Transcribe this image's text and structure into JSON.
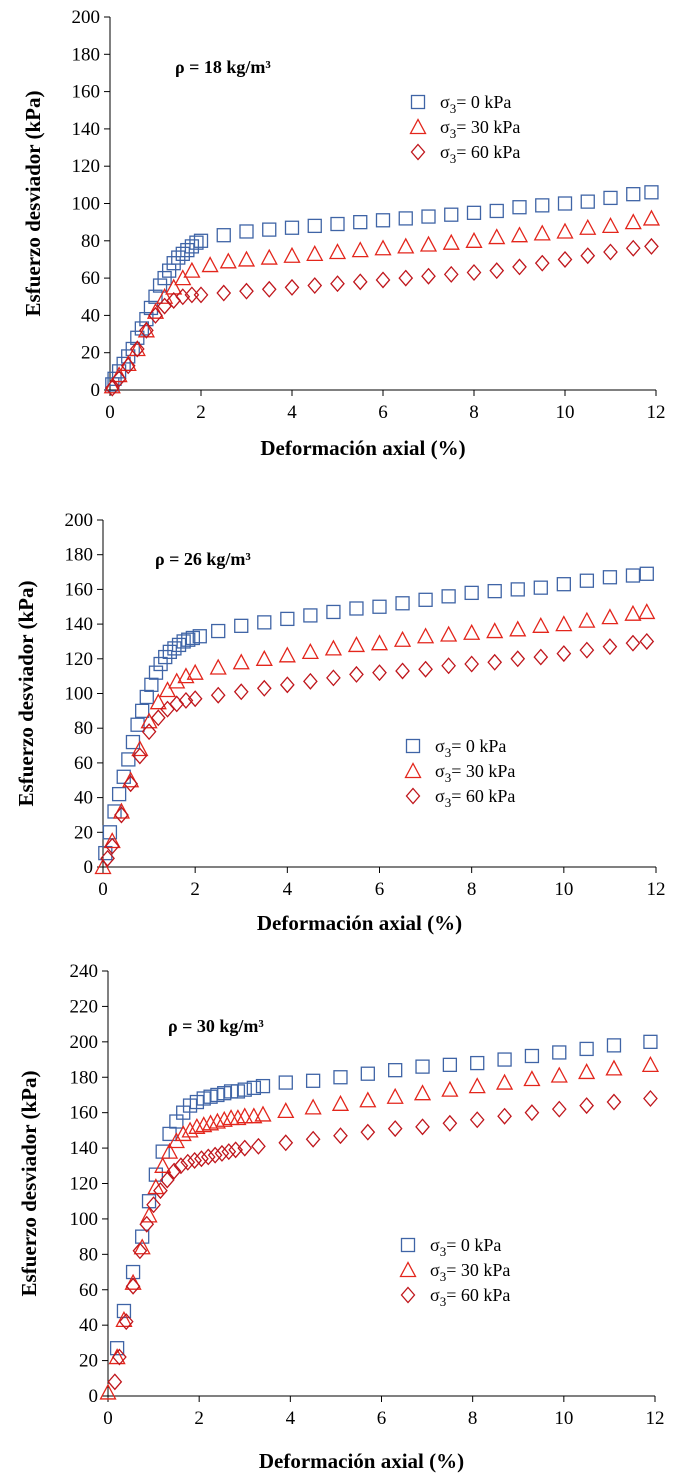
{
  "chart_data": [
    {
      "type": "scatter",
      "annotation": "ρ = 18 kg/m³",
      "xlabel": "Deformación axial (%)",
      "ylabel": "Esfuerzo desviador (kPa)",
      "xlim": [
        0,
        12
      ],
      "ylim": [
        0,
        200
      ],
      "xticks": [
        0,
        2,
        4,
        6,
        8,
        10,
        12
      ],
      "yticks": [
        0,
        20,
        40,
        60,
        80,
        100,
        120,
        140,
        160,
        180,
        200
      ],
      "grid": false,
      "legend": "right",
      "series": [
        {
          "name": "σ₃= 0  kPa",
          "marker": "square",
          "color": "#3f64a6",
          "x": [
            0.05,
            0.1,
            0.2,
            0.3,
            0.4,
            0.5,
            0.6,
            0.7,
            0.8,
            0.9,
            1.0,
            1.1,
            1.2,
            1.3,
            1.4,
            1.5,
            1.6,
            1.7,
            1.8,
            1.9,
            2.0,
            2.5,
            3.0,
            3.5,
            4.0,
            4.5,
            5.0,
            5.5,
            6.0,
            6.5,
            7.0,
            7.5,
            8.0,
            8.5,
            9.0,
            9.5,
            10.0,
            10.5,
            11.0,
            11.5,
            11.9
          ],
          "y": [
            3,
            6,
            10,
            14,
            18,
            22,
            28,
            33,
            38,
            44,
            50,
            56,
            60,
            64,
            68,
            71,
            73,
            75,
            77,
            79,
            80,
            83,
            85,
            86,
            87,
            88,
            89,
            90,
            91,
            92,
            93,
            94,
            95,
            96,
            98,
            99,
            100,
            101,
            103,
            105,
            106
          ]
        },
        {
          "name": "σ₃= 30 kPa",
          "marker": "triangle",
          "color": "#e3261c",
          "x": [
            0.05,
            0.2,
            0.4,
            0.6,
            0.8,
            1.0,
            1.2,
            1.4,
            1.6,
            1.8,
            2.2,
            2.6,
            3.0,
            3.5,
            4.0,
            4.5,
            5.0,
            5.5,
            6.0,
            6.5,
            7.0,
            7.5,
            8.0,
            8.5,
            9.0,
            9.5,
            10.0,
            10.5,
            11.0,
            11.5,
            11.9
          ],
          "y": [
            2,
            8,
            14,
            22,
            32,
            42,
            50,
            55,
            60,
            64,
            67,
            69,
            70,
            71,
            72,
            73,
            74,
            75,
            76,
            77,
            78,
            79,
            80,
            82,
            83,
            84,
            85,
            87,
            88,
            90,
            92
          ]
        },
        {
          "name": "σ₃= 60 kPa",
          "marker": "diamond",
          "color": "#c0161c",
          "x": [
            0.05,
            0.2,
            0.4,
            0.6,
            0.8,
            1.0,
            1.2,
            1.4,
            1.6,
            1.8,
            2.0,
            2.5,
            3.0,
            3.5,
            4.0,
            4.5,
            5.0,
            5.5,
            6.0,
            6.5,
            7.0,
            7.5,
            8.0,
            8.5,
            9.0,
            9.5,
            10.0,
            10.5,
            11.0,
            11.5,
            11.9
          ],
          "y": [
            1,
            6,
            13,
            22,
            32,
            40,
            45,
            48,
            50,
            51,
            51,
            52,
            53,
            54,
            55,
            56,
            57,
            58,
            59,
            60,
            61,
            62,
            63,
            64,
            66,
            68,
            70,
            72,
            74,
            76,
            77
          ]
        }
      ]
    },
    {
      "type": "scatter",
      "annotation": "ρ = 26 kg/m³",
      "xlabel": "Deformación axial (%)",
      "ylabel": "Esfuerzo desviador (kPa)",
      "xlim": [
        0,
        12
      ],
      "ylim": [
        0,
        200
      ],
      "xticks": [
        0,
        2,
        4,
        6,
        8,
        10,
        12
      ],
      "yticks": [
        0,
        20,
        40,
        60,
        80,
        100,
        120,
        140,
        160,
        180,
        200
      ],
      "grid": false,
      "legend": "bottom-right",
      "series": [
        {
          "name": "σ₃= 0  kPa",
          "marker": "square",
          "color": "#3f64a6",
          "x": [
            0.05,
            0.15,
            0.25,
            0.35,
            0.45,
            0.55,
            0.65,
            0.75,
            0.85,
            0.95,
            1.05,
            1.15,
            1.25,
            1.35,
            1.45,
            1.55,
            1.65,
            1.75,
            1.85,
            1.95,
            2.1,
            2.5,
            3.0,
            3.5,
            4.0,
            4.5,
            5.0,
            5.5,
            6.0,
            6.5,
            7.0,
            7.5,
            8.0,
            8.5,
            9.0,
            9.5,
            10.0,
            10.5,
            11.0,
            11.5,
            11.8
          ],
          "y": [
            8,
            20,
            32,
            42,
            52,
            62,
            72,
            82,
            90,
            98,
            105,
            112,
            117,
            121,
            124,
            126,
            128,
            130,
            131,
            132,
            133,
            136,
            139,
            141,
            143,
            145,
            147,
            149,
            150,
            152,
            154,
            156,
            158,
            159,
            160,
            161,
            163,
            165,
            167,
            168,
            169
          ]
        },
        {
          "name": "σ₃= 30 kPa",
          "marker": "triangle",
          "color": "#e3261c",
          "x": [
            0.0,
            0.2,
            0.4,
            0.6,
            0.8,
            1.0,
            1.2,
            1.4,
            1.6,
            1.8,
            2.0,
            2.5,
            3.0,
            3.5,
            4.0,
            4.5,
            5.0,
            5.5,
            6.0,
            6.5,
            7.0,
            7.5,
            8.0,
            8.5,
            9.0,
            9.5,
            10.0,
            10.5,
            11.0,
            11.5,
            11.8
          ],
          "y": [
            0,
            15,
            32,
            50,
            68,
            84,
            95,
            102,
            107,
            110,
            112,
            115,
            118,
            120,
            122,
            124,
            126,
            128,
            129,
            131,
            133,
            134,
            135,
            136,
            137,
            139,
            140,
            142,
            144,
            146,
            147
          ]
        },
        {
          "name": "σ₃= 60 kPa",
          "marker": "diamond",
          "color": "#c0161c",
          "x": [
            0.1,
            0.2,
            0.4,
            0.6,
            0.8,
            1.0,
            1.2,
            1.4,
            1.6,
            1.8,
            2.0,
            2.5,
            3.0,
            3.5,
            4.0,
            4.5,
            5.0,
            5.5,
            6.0,
            6.5,
            7.0,
            7.5,
            8.0,
            8.5,
            9.0,
            9.5,
            10.0,
            10.5,
            11.0,
            11.5,
            11.8
          ],
          "y": [
            5,
            12,
            30,
            48,
            64,
            78,
            86,
            91,
            94,
            96,
            97,
            99,
            101,
            103,
            105,
            107,
            109,
            111,
            112,
            113,
            114,
            116,
            117,
            118,
            120,
            121,
            123,
            125,
            127,
            129,
            130
          ]
        }
      ]
    },
    {
      "type": "scatter",
      "annotation": "ρ = 30 kg/m³",
      "xlabel": "Deformación axial (%)",
      "ylabel": "Esfuerzo desviador (kPa)",
      "xlim": [
        0,
        12
      ],
      "ylim": [
        0,
        240
      ],
      "xticks": [
        0,
        2,
        4,
        6,
        8,
        10,
        12
      ],
      "yticks": [
        0,
        20,
        40,
        60,
        80,
        100,
        120,
        140,
        160,
        180,
        200,
        220,
        240
      ],
      "grid": false,
      "legend": "bottom-right",
      "series": [
        {
          "name": "σ₃= 0  kPa",
          "marker": "square",
          "color": "#3f64a6",
          "x": [
            0.2,
            0.35,
            0.55,
            0.75,
            0.9,
            1.05,
            1.2,
            1.35,
            1.5,
            1.65,
            1.8,
            1.95,
            2.1,
            2.25,
            2.4,
            2.55,
            2.7,
            2.85,
            3.0,
            3.2,
            3.4,
            3.9,
            4.5,
            5.1,
            5.7,
            6.3,
            6.9,
            7.5,
            8.1,
            8.7,
            9.3,
            9.9,
            10.5,
            11.1,
            11.9
          ],
          "y": [
            27,
            48,
            70,
            90,
            110,
            125,
            138,
            148,
            155,
            160,
            164,
            166,
            168,
            169,
            170,
            171,
            172,
            172,
            173,
            174,
            175,
            177,
            178,
            180,
            182,
            184,
            186,
            187,
            188,
            190,
            192,
            194,
            196,
            198,
            200
          ]
        },
        {
          "name": "σ₃= 30 kPa",
          "marker": "triangle",
          "color": "#e3261c",
          "x": [
            0.0,
            0.2,
            0.35,
            0.55,
            0.75,
            0.9,
            1.05,
            1.2,
            1.35,
            1.5,
            1.65,
            1.8,
            1.95,
            2.1,
            2.25,
            2.4,
            2.55,
            2.7,
            2.85,
            3.0,
            3.2,
            3.4,
            3.9,
            4.5,
            5.1,
            5.7,
            6.3,
            6.9,
            7.5,
            8.1,
            8.7,
            9.3,
            9.9,
            10.5,
            11.1,
            11.9
          ],
          "y": [
            2,
            22,
            43,
            64,
            84,
            102,
            118,
            130,
            138,
            144,
            148,
            150,
            152,
            153,
            154,
            155,
            156,
            157,
            157,
            158,
            158,
            159,
            161,
            163,
            165,
            167,
            169,
            171,
            173,
            175,
            177,
            179,
            181,
            183,
            185,
            187
          ]
        },
        {
          "name": "σ₃= 60 kPa",
          "marker": "diamond",
          "color": "#c0161c",
          "x": [
            0.15,
            0.25,
            0.4,
            0.55,
            0.7,
            0.85,
            1.0,
            1.15,
            1.3,
            1.45,
            1.6,
            1.75,
            1.9,
            2.05,
            2.2,
            2.35,
            2.5,
            2.65,
            2.8,
            3.0,
            3.3,
            3.9,
            4.5,
            5.1,
            5.7,
            6.3,
            6.9,
            7.5,
            8.1,
            8.7,
            9.3,
            9.9,
            10.5,
            11.1,
            11.9
          ],
          "y": [
            8,
            22,
            42,
            62,
            82,
            97,
            108,
            116,
            122,
            127,
            130,
            132,
            133,
            134,
            135,
            136,
            137,
            138,
            139,
            140,
            141,
            143,
            145,
            147,
            149,
            151,
            152,
            154,
            156,
            158,
            160,
            162,
            164,
            166,
            168
          ]
        }
      ]
    }
  ]
}
